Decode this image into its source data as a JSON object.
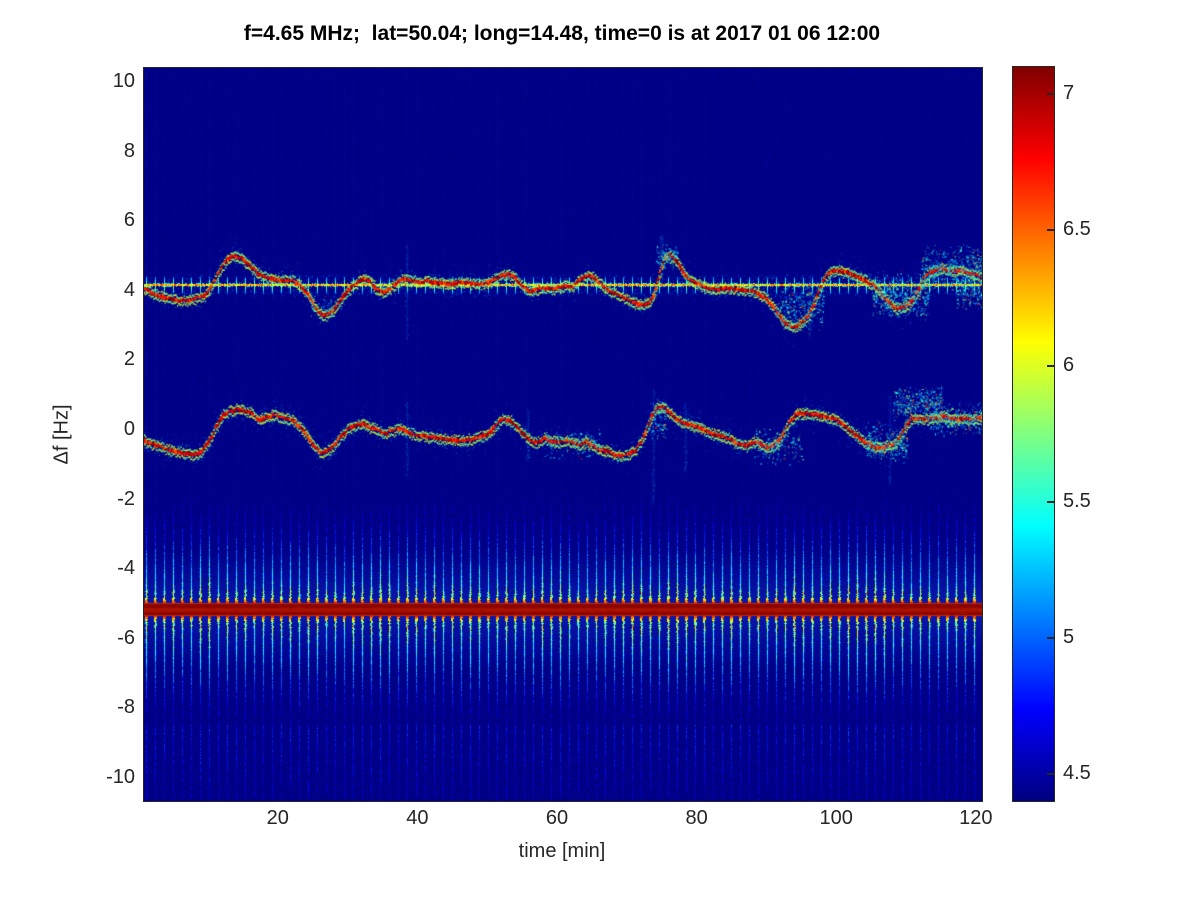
{
  "title": "f=4.65 MHz;  lat=50.04; long=14.48, time=0 is at 2017 01 06 12:00",
  "axes": {
    "xlabel": "time [min]",
    "ylabel": "Δf [Hz]",
    "x_ticks": [
      20,
      40,
      60,
      80,
      100,
      120
    ],
    "y_ticks": [
      10,
      8,
      6,
      4,
      2,
      0,
      -2,
      -4,
      -6,
      -8,
      -10
    ]
  },
  "colors": {
    "figure_background": "#ffffff",
    "plot_background_navy": "#00008a",
    "axis_text": "#262626",
    "title_text": "#000000",
    "comb_band_core_red": "#8e0500"
  },
  "chart_data": {
    "type": "heatmap",
    "title": "f=4.65 MHz;  lat=50.04; long=14.48, time=0 is at 2017 01 06 12:00",
    "xlabel": "time [min]",
    "ylabel": "Δf [Hz]",
    "x_ticks": [
      20,
      40,
      60,
      80,
      100,
      120
    ],
    "y_ticks": [
      10,
      8,
      6,
      4,
      2,
      0,
      -2,
      -4,
      -6,
      -8,
      -10
    ],
    "xlim": [
      0.7,
      120.7
    ],
    "ylim": [
      -10.7,
      10.4
    ],
    "colormap": "jet",
    "colorbar": {
      "min": 4.4,
      "max": 7.1,
      "ticks": [
        7,
        6.5,
        6,
        5.5,
        5,
        4.5
      ]
    },
    "background_value": 4.42,
    "features": {
      "carrier_comb_line": {
        "f_hz": 4.18,
        "tick_period_min": 1.29,
        "value": 6.3
      },
      "sideband_comb_band": {
        "center_hz": -5.15,
        "period_min": 1.29,
        "visible_extent_hz": [
          -10.66,
          -2.1
        ],
        "core_band_hz": [
          -5.33,
          -4.99
        ],
        "core_value": 7.05
      },
      "upper_trace": {
        "points": [
          [
            0,
            4.15
          ],
          [
            1,
            4.05
          ],
          [
            2,
            3.9
          ],
          [
            4,
            3.8
          ],
          [
            6,
            3.72
          ],
          [
            8,
            3.78
          ],
          [
            9.5,
            3.9
          ],
          [
            10.5,
            4.2
          ],
          [
            11.5,
            4.6
          ],
          [
            12.5,
            4.9
          ],
          [
            13.5,
            5.0
          ],
          [
            14.5,
            4.95
          ],
          [
            15.5,
            4.8
          ],
          [
            16.5,
            4.6
          ],
          [
            17.5,
            4.45
          ],
          [
            19,
            4.35
          ],
          [
            20,
            4.3
          ],
          [
            21,
            4.32
          ],
          [
            22,
            4.28
          ],
          [
            23,
            4.15
          ],
          [
            24,
            3.95
          ],
          [
            25,
            3.6
          ],
          [
            26,
            3.35
          ],
          [
            27,
            3.3
          ],
          [
            28,
            3.5
          ],
          [
            29,
            3.8
          ],
          [
            30,
            4.05
          ],
          [
            31,
            4.2
          ],
          [
            32,
            4.35
          ],
          [
            33,
            4.3
          ],
          [
            34,
            4.05
          ],
          [
            35,
            3.95
          ],
          [
            36,
            4.1
          ],
          [
            37,
            4.25
          ],
          [
            38,
            4.35
          ],
          [
            39,
            4.3
          ],
          [
            40,
            4.25
          ],
          [
            41,
            4.3
          ],
          [
            42,
            4.25
          ],
          [
            44,
            4.2
          ],
          [
            46,
            4.25
          ],
          [
            48,
            4.2
          ],
          [
            50,
            4.25
          ],
          [
            52,
            4.45
          ],
          [
            53,
            4.5
          ],
          [
            54,
            4.35
          ],
          [
            55,
            4.1
          ],
          [
            56,
            4.0
          ],
          [
            57,
            4.05
          ],
          [
            58,
            4.1
          ],
          [
            59,
            4.05
          ],
          [
            60,
            4.1
          ],
          [
            61,
            4.15
          ],
          [
            62,
            4.1
          ],
          [
            63,
            4.3
          ],
          [
            64,
            4.45
          ],
          [
            65,
            4.4
          ],
          [
            66,
            4.2
          ],
          [
            67,
            4.05
          ],
          [
            68,
            3.95
          ],
          [
            69,
            3.85
          ],
          [
            70,
            3.75
          ],
          [
            71,
            3.65
          ],
          [
            72,
            3.6
          ],
          [
            73,
            3.65
          ],
          [
            73.8,
            3.9
          ],
          [
            74.5,
            4.5
          ],
          [
            75.2,
            4.95
          ],
          [
            76,
            5.05
          ],
          [
            77,
            4.85
          ],
          [
            78,
            4.5
          ],
          [
            79,
            4.3
          ],
          [
            80,
            4.2
          ],
          [
            81,
            4.1
          ],
          [
            82,
            4.05
          ],
          [
            84,
            4.1
          ],
          [
            86,
            4.05
          ],
          [
            88,
            4.0
          ],
          [
            89,
            3.9
          ],
          [
            90,
            3.75
          ],
          [
            91,
            3.5
          ],
          [
            92,
            3.2
          ],
          [
            93,
            3.0
          ],
          [
            94,
            2.95
          ],
          [
            95,
            3.1
          ],
          [
            96,
            3.35
          ],
          [
            97,
            3.8
          ],
          [
            98,
            4.3
          ],
          [
            99,
            4.55
          ],
          [
            100,
            4.6
          ],
          [
            101,
            4.55
          ],
          [
            102,
            4.5
          ],
          [
            103,
            4.4
          ],
          [
            104,
            4.3
          ],
          [
            105,
            4.2
          ],
          [
            106,
            4.0
          ],
          [
            107,
            3.75
          ],
          [
            108,
            3.55
          ],
          [
            109,
            3.5
          ],
          [
            110,
            3.6
          ],
          [
            111,
            3.8
          ],
          [
            111.8,
            4.1
          ],
          [
            112.5,
            4.4
          ],
          [
            113.5,
            4.55
          ],
          [
            115,
            4.65
          ],
          [
            116,
            4.6
          ],
          [
            117,
            4.55
          ],
          [
            118,
            4.6
          ],
          [
            119,
            4.5
          ],
          [
            120,
            4.45
          ],
          [
            121.5,
            4.3
          ]
        ]
      },
      "main_trace": {
        "points": [
          [
            0,
            -0.25
          ],
          [
            2,
            -0.4
          ],
          [
            4,
            -0.55
          ],
          [
            6,
            -0.65
          ],
          [
            8,
            -0.7
          ],
          [
            9,
            -0.6
          ],
          [
            10,
            -0.3
          ],
          [
            11,
            0.1
          ],
          [
            12,
            0.45
          ],
          [
            13,
            0.55
          ],
          [
            14,
            0.6
          ],
          [
            15,
            0.55
          ],
          [
            16,
            0.5
          ],
          [
            17,
            0.3
          ],
          [
            18,
            0.35
          ],
          [
            19,
            0.45
          ],
          [
            20,
            0.4
          ],
          [
            21,
            0.35
          ],
          [
            22,
            0.3
          ],
          [
            23,
            0.1
          ],
          [
            24,
            -0.15
          ],
          [
            25,
            -0.45
          ],
          [
            26,
            -0.65
          ],
          [
            27,
            -0.6
          ],
          [
            28,
            -0.4
          ],
          [
            29,
            -0.15
          ],
          [
            30,
            0.05
          ],
          [
            31,
            0.15
          ],
          [
            32,
            0.2
          ],
          [
            33,
            0.1
          ],
          [
            34,
            0.0
          ],
          [
            35,
            -0.1
          ],
          [
            36,
            -0.05
          ],
          [
            37,
            0.05
          ],
          [
            38,
            0.0
          ],
          [
            39,
            -0.1
          ],
          [
            40,
            -0.15
          ],
          [
            42,
            -0.2
          ],
          [
            44,
            -0.25
          ],
          [
            46,
            -0.3
          ],
          [
            48,
            -0.25
          ],
          [
            50,
            -0.1
          ],
          [
            51,
            0.1
          ],
          [
            52,
            0.3
          ],
          [
            53,
            0.3
          ],
          [
            54,
            0.1
          ],
          [
            55,
            -0.1
          ],
          [
            56,
            -0.3
          ],
          [
            57,
            -0.35
          ],
          [
            58,
            -0.25
          ],
          [
            59,
            -0.3
          ],
          [
            60,
            -0.35
          ],
          [
            61,
            -0.3
          ],
          [
            62,
            -0.35
          ],
          [
            63,
            -0.4
          ],
          [
            64,
            -0.35
          ],
          [
            65,
            -0.45
          ],
          [
            66,
            -0.55
          ],
          [
            67,
            -0.6
          ],
          [
            68,
            -0.7
          ],
          [
            69,
            -0.75
          ],
          [
            70,
            -0.7
          ],
          [
            71,
            -0.6
          ],
          [
            72,
            -0.3
          ],
          [
            73,
            0.2
          ],
          [
            74,
            0.6
          ],
          [
            75,
            0.68
          ],
          [
            76,
            0.5
          ],
          [
            77,
            0.3
          ],
          [
            78,
            0.2
          ],
          [
            79,
            0.15
          ],
          [
            80,
            0.1
          ],
          [
            81,
            0.0
          ],
          [
            82,
            -0.1
          ],
          [
            83,
            -0.15
          ],
          [
            84,
            -0.2
          ],
          [
            85,
            -0.3
          ],
          [
            86,
            -0.4
          ],
          [
            87,
            -0.45
          ],
          [
            88,
            -0.35
          ],
          [
            89,
            -0.4
          ],
          [
            90,
            -0.5
          ],
          [
            91,
            -0.45
          ],
          [
            92,
            -0.2
          ],
          [
            93,
            0.2
          ],
          [
            94,
            0.45
          ],
          [
            95,
            0.5
          ],
          [
            96,
            0.45
          ],
          [
            97,
            0.45
          ],
          [
            98,
            0.4
          ],
          [
            99,
            0.35
          ],
          [
            100,
            0.3
          ],
          [
            101,
            0.15
          ],
          [
            102,
            -0.05
          ],
          [
            103,
            -0.2
          ],
          [
            104,
            -0.35
          ],
          [
            105,
            -0.45
          ],
          [
            106,
            -0.5
          ],
          [
            107,
            -0.45
          ],
          [
            108,
            -0.4
          ],
          [
            109,
            -0.2
          ],
          [
            109.8,
            0.1
          ],
          [
            110.5,
            0.3
          ],
          [
            112,
            0.35
          ],
          [
            113,
            0.3
          ],
          [
            114,
            0.35
          ],
          [
            115,
            0.4
          ],
          [
            116,
            0.35
          ],
          [
            117,
            0.3
          ],
          [
            118,
            0.35
          ],
          [
            119,
            0.3
          ],
          [
            120,
            0.35
          ],
          [
            121.5,
            0.4
          ]
        ]
      },
      "scatter_blobs": [
        {
          "t": [
            91,
            98
          ],
          "f": [
            2.8,
            4.3
          ],
          "n": 320
        },
        {
          "t": [
            105,
            113
          ],
          "f": [
            3.1,
            4.6
          ],
          "n": 480
        },
        {
          "t": [
            112,
            121.7
          ],
          "f": [
            4.0,
            5.4
          ],
          "n": 470
        },
        {
          "t": [
            117,
            121.7
          ],
          "f": [
            3.4,
            4.6
          ],
          "n": 230
        },
        {
          "t": [
            74,
            77
          ],
          "f": [
            4.6,
            5.4
          ],
          "n": 110
        },
        {
          "t": [
            24.5,
            28
          ],
          "f": [
            3.2,
            4.0
          ],
          "n": 70
        },
        {
          "t": [
            88,
            95
          ],
          "f": [
            -1.0,
            0.2
          ],
          "n": 200
        },
        {
          "t": [
            104,
            110
          ],
          "f": [
            -1.0,
            0.3
          ],
          "n": 290
        },
        {
          "t": [
            108,
            115
          ],
          "f": [
            0.2,
            1.3
          ],
          "n": 380
        },
        {
          "t": [
            113,
            121.7
          ],
          "f": [
            -0.2,
            0.8
          ],
          "n": 330
        },
        {
          "t": [
            73,
            75.5
          ],
          "f": [
            -0.5,
            1.0
          ],
          "n": 90
        },
        {
          "t": [
            58,
            66
          ],
          "f": [
            -0.85,
            0.1
          ],
          "n": 140
        }
      ],
      "noise_streaks": [
        {
          "t": 38.3,
          "f": [
            2.6,
            5.3
          ]
        },
        {
          "t": 74.8,
          "f": [
            4.2,
            5.6
          ]
        },
        {
          "t": 96.0,
          "f": [
            2.6,
            4.4
          ]
        },
        {
          "t": 73.6,
          "f": [
            -2.2,
            1.2
          ]
        },
        {
          "t": 78.2,
          "f": [
            -1.2,
            0.8
          ]
        },
        {
          "t": 107.5,
          "f": [
            -1.6,
            1.0
          ]
        },
        {
          "t": 38.3,
          "f": [
            -1.3,
            0.8
          ]
        },
        {
          "t": 55.6,
          "f": [
            -0.9,
            0.6
          ]
        }
      ]
    }
  }
}
